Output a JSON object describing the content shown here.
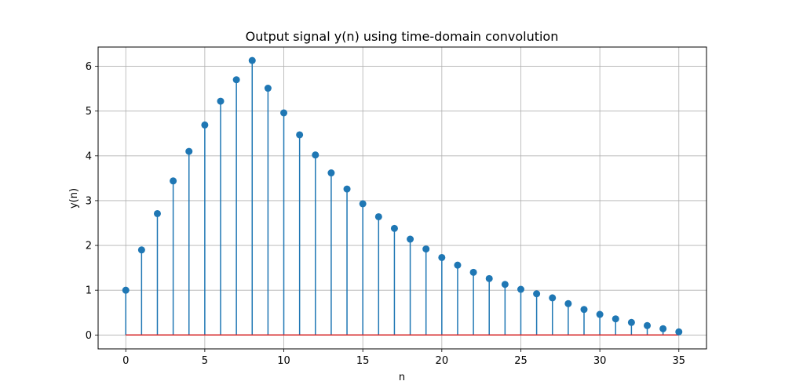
{
  "chart_data": {
    "type": "stem",
    "title": "Output signal y(n) using time-domain convolution",
    "xlabel": "n",
    "ylabel": "y(n)",
    "xlim": [
      -1.75,
      36.75
    ],
    "ylim": [
      -0.31,
      6.43
    ],
    "grid": true,
    "x_ticks": [
      0,
      5,
      10,
      15,
      20,
      25,
      30,
      35
    ],
    "y_ticks": [
      0,
      1,
      2,
      3,
      4,
      5,
      6
    ],
    "colors": {
      "stem": "#1f77b4",
      "baseline": "#d62728",
      "grid": "#b0b0b0"
    },
    "x": [
      0,
      1,
      2,
      3,
      4,
      5,
      6,
      7,
      8,
      9,
      10,
      11,
      12,
      13,
      14,
      15,
      16,
      17,
      18,
      19,
      20,
      21,
      22,
      23,
      24,
      25,
      26,
      27,
      28,
      29,
      30,
      31,
      32,
      33,
      34,
      35
    ],
    "values": [
      1.0,
      1.9,
      2.71,
      3.44,
      4.1,
      4.69,
      5.22,
      5.7,
      6.13,
      5.51,
      4.96,
      4.47,
      4.02,
      3.62,
      3.26,
      2.93,
      2.64,
      2.38,
      2.14,
      1.92,
      1.73,
      1.56,
      1.4,
      1.26,
      1.13,
      1.02,
      0.92,
      0.83,
      0.7,
      0.57,
      0.46,
      0.36,
      0.28,
      0.21,
      0.14,
      0.07
    ]
  }
}
